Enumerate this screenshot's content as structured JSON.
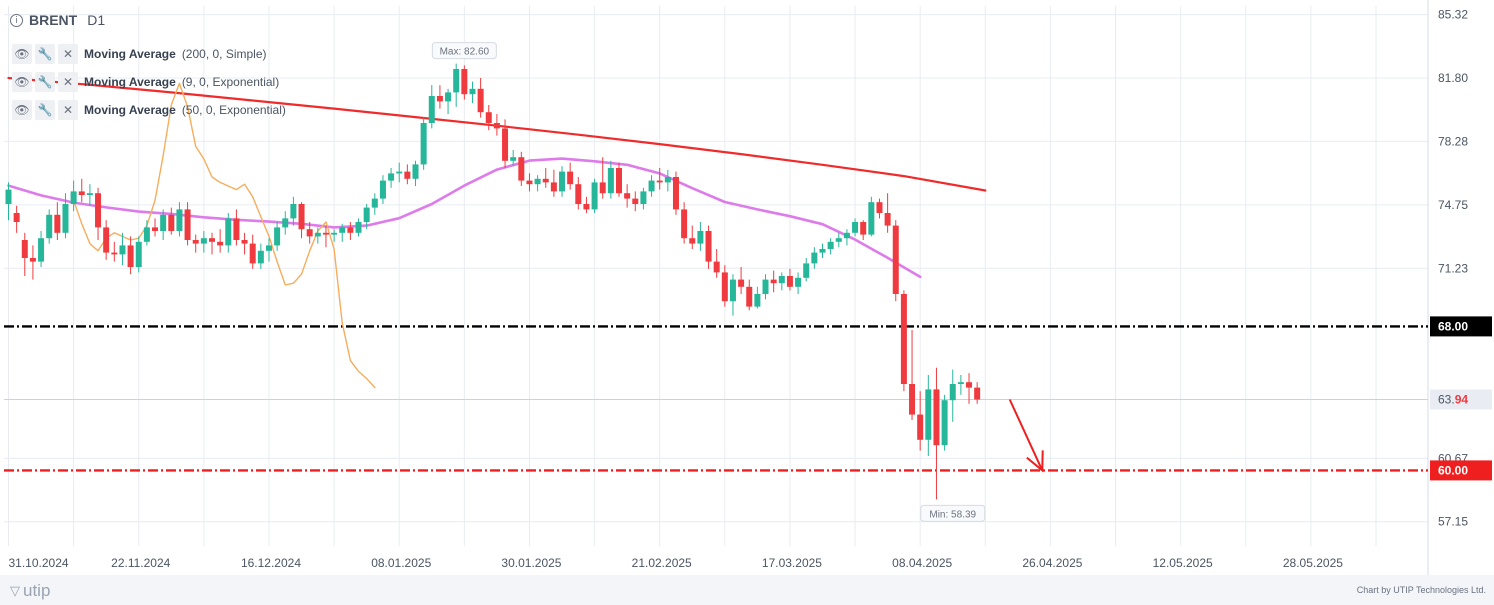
{
  "header": {
    "info_glyph": "i",
    "symbol": "BRENT",
    "timeframe": "D1"
  },
  "indicators": [
    {
      "name": "Moving Average",
      "params": "(200, 0, Simple)",
      "color": "#ef2b2b",
      "icons": [
        "eye-icon",
        "wrench-icon",
        "close-icon"
      ]
    },
    {
      "name": "Moving Average",
      "params": "(9, 0, Exponential)",
      "color": "#f6ad5c",
      "icons": [
        "eye-icon",
        "wrench-icon",
        "close-icon"
      ]
    },
    {
      "name": "Moving Average",
      "params": "(50, 0, Exponential)",
      "color": "#de7bea",
      "icons": [
        "eye-icon",
        "wrench-icon",
        "close-icon"
      ]
    }
  ],
  "footer": {
    "logo_text": "utip",
    "credit": "Chart by UTIP Technologies Ltd."
  },
  "chart_data": {
    "type": "candlestick",
    "symbol": "BRENT",
    "timeframe": "D1",
    "y_axis": {
      "ylim": [
        55.8,
        85.8
      ],
      "ticks": [
        "85.32",
        "81.80",
        "78.28",
        "74.75",
        "71.23",
        "60.67",
        "57.15"
      ]
    },
    "x_axis": {
      "tick_labels": [
        "31.10.2024",
        "22.11.2024",
        "16.12.2024",
        "08.01.2025",
        "30.01.2025",
        "21.02.2025",
        "17.03.2025",
        "08.04.2025",
        "26.04.2025",
        "12.05.2025",
        "28.05.2025"
      ],
      "label_bar_index": [
        0,
        16,
        32,
        48,
        64,
        80,
        96,
        112,
        128,
        144,
        160
      ]
    },
    "grid": true,
    "colors": {
      "bull": "#26b69a",
      "bear": "#ef3b3f"
    },
    "candles": [
      [
        74.8,
        76.0,
        73.9,
        75.6
      ],
      [
        74.3,
        74.7,
        73.2,
        73.8
      ],
      [
        72.8,
        73.2,
        70.8,
        71.8
      ],
      [
        71.8,
        72.5,
        70.6,
        71.6
      ],
      [
        71.6,
        73.3,
        71.3,
        72.9
      ],
      [
        72.9,
        74.5,
        72.6,
        74.2
      ],
      [
        74.2,
        74.9,
        72.8,
        73.2
      ],
      [
        73.2,
        75.4,
        72.9,
        74.8
      ],
      [
        74.8,
        76.1,
        74.4,
        75.5
      ],
      [
        75.5,
        76.2,
        74.9,
        75.3
      ],
      [
        75.3,
        75.9,
        74.7,
        75.4
      ],
      [
        75.4,
        75.7,
        72.8,
        73.5
      ],
      [
        73.5,
        73.9,
        71.7,
        72.1
      ],
      [
        72.1,
        72.7,
        71.6,
        72.0
      ],
      [
        72.0,
        73.2,
        71.4,
        72.5
      ],
      [
        72.5,
        73.0,
        70.9,
        71.3
      ],
      [
        71.3,
        73.0,
        71.0,
        72.7
      ],
      [
        72.7,
        73.9,
        72.5,
        73.5
      ],
      [
        73.5,
        74.0,
        73.0,
        73.3
      ],
      [
        73.3,
        74.5,
        72.8,
        74.2
      ],
      [
        74.2,
        74.6,
        73.1,
        73.3
      ],
      [
        73.3,
        74.9,
        73.0,
        74.5
      ],
      [
        74.5,
        74.9,
        72.5,
        72.8
      ],
      [
        72.8,
        73.1,
        72.1,
        72.6
      ],
      [
        72.6,
        73.3,
        72.1,
        72.9
      ],
      [
        72.9,
        73.2,
        72.0,
        72.7
      ],
      [
        72.7,
        73.4,
        72.1,
        72.5
      ],
      [
        72.5,
        74.3,
        72.1,
        74.0
      ],
      [
        74.0,
        74.5,
        72.5,
        72.8
      ],
      [
        72.8,
        73.2,
        72.0,
        72.6
      ],
      [
        72.6,
        73.1,
        71.2,
        71.5
      ],
      [
        71.5,
        72.6,
        71.2,
        72.2
      ],
      [
        72.2,
        72.9,
        71.6,
        72.5
      ],
      [
        72.5,
        73.8,
        72.2,
        73.5
      ],
      [
        73.5,
        74.4,
        73.1,
        74.0
      ],
      [
        74.0,
        75.2,
        73.6,
        74.8
      ],
      [
        74.8,
        74.9,
        72.9,
        73.4
      ],
      [
        73.4,
        73.8,
        72.6,
        73.0
      ],
      [
        73.0,
        73.5,
        72.6,
        73.2
      ],
      [
        73.2,
        73.6,
        72.4,
        73.1
      ],
      [
        73.1,
        73.4,
        72.7,
        73.2
      ],
      [
        73.2,
        73.7,
        72.7,
        73.5
      ],
      [
        73.5,
        73.8,
        72.8,
        73.2
      ],
      [
        73.2,
        74.0,
        73.0,
        73.8
      ],
      [
        73.8,
        74.8,
        73.4,
        74.6
      ],
      [
        74.6,
        75.4,
        74.2,
        75.1
      ],
      [
        75.1,
        76.4,
        74.8,
        76.1
      ],
      [
        76.1,
        76.8,
        75.7,
        76.5
      ],
      [
        76.5,
        77.1,
        76.0,
        76.6
      ],
      [
        76.6,
        77.0,
        75.9,
        76.2
      ],
      [
        76.2,
        77.2,
        75.8,
        77.0
      ],
      [
        77.0,
        79.6,
        76.7,
        79.3
      ],
      [
        79.3,
        81.4,
        79.0,
        80.8
      ],
      [
        80.8,
        81.4,
        80.1,
        80.5
      ],
      [
        80.5,
        81.2,
        79.8,
        81.0
      ],
      [
        81.0,
        82.6,
        80.2,
        82.3
      ],
      [
        82.3,
        82.5,
        80.6,
        80.9
      ],
      [
        80.9,
        81.6,
        80.4,
        81.2
      ],
      [
        81.2,
        81.8,
        79.6,
        79.9
      ],
      [
        79.9,
        80.3,
        78.9,
        79.3
      ],
      [
        79.3,
        79.8,
        78.6,
        79.0
      ],
      [
        79.0,
        79.5,
        76.8,
        77.2
      ],
      [
        77.2,
        77.8,
        76.9,
        77.4
      ],
      [
        77.4,
        77.7,
        75.8,
        76.1
      ],
      [
        76.1,
        76.5,
        75.5,
        75.9
      ],
      [
        75.9,
        76.4,
        75.5,
        76.2
      ],
      [
        76.2,
        76.8,
        75.7,
        76.0
      ],
      [
        76.0,
        76.7,
        75.2,
        75.5
      ],
      [
        75.5,
        76.9,
        75.2,
        76.6
      ],
      [
        76.6,
        77.1,
        75.6,
        75.9
      ],
      [
        75.9,
        76.3,
        74.5,
        74.8
      ],
      [
        74.8,
        75.2,
        74.3,
        74.5
      ],
      [
        74.5,
        76.2,
        74.3,
        76.0
      ],
      [
        76.0,
        77.4,
        75.1,
        75.4
      ],
      [
        75.4,
        77.2,
        75.1,
        76.8
      ],
      [
        76.8,
        77.1,
        75.2,
        75.4
      ],
      [
        75.4,
        75.9,
        74.6,
        75.1
      ],
      [
        75.1,
        75.5,
        74.4,
        74.8
      ],
      [
        74.8,
        75.7,
        74.5,
        75.5
      ],
      [
        75.5,
        76.4,
        75.2,
        76.1
      ],
      [
        76.1,
        76.8,
        75.6,
        76.0
      ],
      [
        76.0,
        76.7,
        75.5,
        76.3
      ],
      [
        76.3,
        76.6,
        74.2,
        74.5
      ],
      [
        74.5,
        74.9,
        72.6,
        72.9
      ],
      [
        72.9,
        73.6,
        72.3,
        72.6
      ],
      [
        72.6,
        73.8,
        72.2,
        73.3
      ],
      [
        73.3,
        73.6,
        71.2,
        71.6
      ],
      [
        71.6,
        72.3,
        70.7,
        71.0
      ],
      [
        71.0,
        71.4,
        69.1,
        69.4
      ],
      [
        69.4,
        70.9,
        68.6,
        70.6
      ],
      [
        70.6,
        71.3,
        69.8,
        70.2
      ],
      [
        70.2,
        70.6,
        68.9,
        69.1
      ],
      [
        69.1,
        70.2,
        69.0,
        69.8
      ],
      [
        69.8,
        70.9,
        69.5,
        70.6
      ],
      [
        70.6,
        71.1,
        69.9,
        70.4
      ],
      [
        70.4,
        71.0,
        70.0,
        70.8
      ],
      [
        70.8,
        71.2,
        70.0,
        70.2
      ],
      [
        70.2,
        71.0,
        69.8,
        70.7
      ],
      [
        70.7,
        71.8,
        70.5,
        71.5
      ],
      [
        71.5,
        72.4,
        71.2,
        72.1
      ],
      [
        72.1,
        72.6,
        71.8,
        72.3
      ],
      [
        72.3,
        72.9,
        72.0,
        72.7
      ],
      [
        72.7,
        73.2,
        72.4,
        72.9
      ],
      [
        72.9,
        73.4,
        72.5,
        73.2
      ],
      [
        73.2,
        74.0,
        73.0,
        73.8
      ],
      [
        73.8,
        73.9,
        72.8,
        73.1
      ],
      [
        73.1,
        75.2,
        73.0,
        74.9
      ],
      [
        74.9,
        75.1,
        74.0,
        74.3
      ],
      [
        74.3,
        75.4,
        73.2,
        73.6
      ],
      [
        73.6,
        73.9,
        69.4,
        69.8
      ],
      [
        69.8,
        70.0,
        64.4,
        64.8
      ],
      [
        64.8,
        67.8,
        62.8,
        63.1
      ],
      [
        63.1,
        64.4,
        61.1,
        61.7
      ],
      [
        61.7,
        65.3,
        60.8,
        64.5
      ],
      [
        64.5,
        65.7,
        58.39,
        61.4
      ],
      [
        61.4,
        64.2,
        61.1,
        63.9
      ],
      [
        63.9,
        65.6,
        62.7,
        64.8
      ],
      [
        64.8,
        65.3,
        64.2,
        64.9
      ],
      [
        64.9,
        65.4,
        63.7,
        64.6
      ],
      [
        64.6,
        64.9,
        63.7,
        63.94
      ]
    ],
    "series": [
      {
        "name": "Moving Average (200, 0, Simple)",
        "color": "#ef2b2b",
        "start_index": 0,
        "values": [
          81.8,
          81.42,
          81.0,
          80.55,
          80.1,
          79.63,
          79.15,
          78.65,
          78.13,
          77.57,
          76.98,
          76.35,
          75.55
        ]
      },
      {
        "name": "Moving Average (50, 0, Exponential)",
        "color": "#de7bea",
        "start_index": 0,
        "values": [
          75.82,
          75.28,
          74.88,
          74.61,
          74.38,
          74.25,
          74.06,
          73.92,
          73.82,
          73.7,
          73.5,
          73.6,
          74.01,
          74.8,
          75.82,
          76.71,
          77.21,
          77.32,
          77.17,
          76.98,
          76.5,
          75.68,
          74.91,
          74.5,
          74.12,
          73.68,
          72.82,
          71.81,
          70.75
        ]
      },
      {
        "name": "Moving Average (9, 0, Exponential)",
        "color": "#f6ad5c",
        "start_index": 8,
        "values": [
          75.0,
          73.7,
          72.6,
          72.2,
          72.9,
          73.2,
          73.0,
          72.8,
          72.9,
          73.6,
          75.0,
          77.5,
          80.3,
          81.5,
          80.2,
          78.0,
          77.3,
          76.3,
          76.0,
          75.8,
          75.6,
          75.9,
          75.2,
          74.1,
          73.0,
          71.6,
          70.3,
          70.4,
          70.9,
          72.2,
          73.3,
          73.8,
          72.3,
          68.2,
          66.1,
          65.5,
          65.1,
          64.6
        ]
      }
    ],
    "horizontal_lines": [
      {
        "value": 68.0,
        "label": "68.00",
        "color": "#000000",
        "style": "dash-dot"
      },
      {
        "value": 60.0,
        "label": "60.00",
        "color": "#ef1f1f",
        "style": "dash-dot"
      }
    ],
    "current_price": {
      "value": 63.94,
      "label_main": "63.",
      "label_tail": "94"
    },
    "annotations": [
      {
        "text": "Max: 82.60",
        "value": 82.6,
        "bar_index": 56
      },
      {
        "text": "Min: 58.39",
        "value": 58.39,
        "bar_index": 116
      }
    ],
    "arrow": {
      "from_index": 123,
      "from_value": 63.94,
      "to_index": 127,
      "to_value": 60.0,
      "color": "#ef1f1f"
    }
  }
}
